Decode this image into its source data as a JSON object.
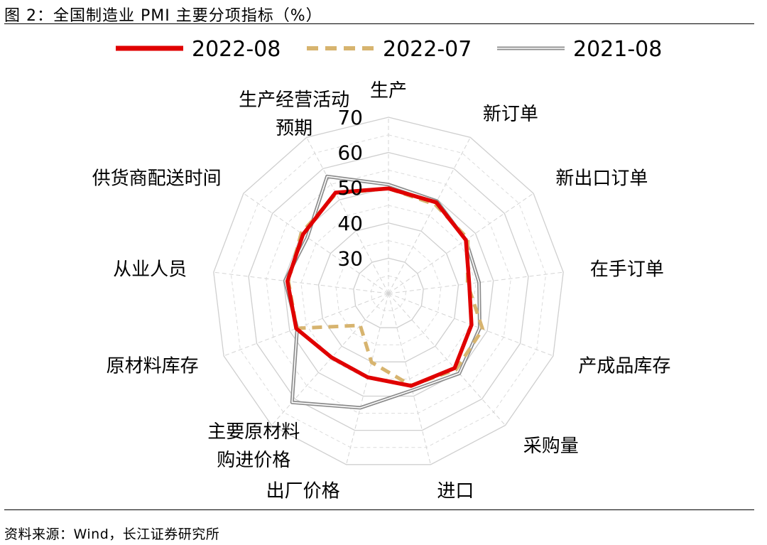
{
  "figure": {
    "title": "图 2：全国制造业 PMI 主要分项指标（%）",
    "source": "资料来源：Wind，长江证券研究所"
  },
  "chart_data": {
    "type": "radar",
    "r_range": [
      20,
      70
    ],
    "r_ticks": [
      30,
      40,
      50,
      60,
      70
    ],
    "grid": true,
    "legend_position": "top",
    "axes": [
      {
        "label": [
          "生产"
        ],
        "anchor": "middle"
      },
      {
        "label": [
          "新订单"
        ],
        "anchor": "start"
      },
      {
        "label": [
          "新出口订单"
        ],
        "anchor": "start"
      },
      {
        "label": [
          "在手订单"
        ],
        "anchor": "start"
      },
      {
        "label": [
          "产成品库存"
        ],
        "anchor": "start"
      },
      {
        "label": [
          "采购量"
        ],
        "anchor": "start"
      },
      {
        "label": [
          "进口"
        ],
        "anchor": "start"
      },
      {
        "label": [
          "出厂价格"
        ],
        "anchor": "end"
      },
      {
        "label": [
          "主要原材料",
          "购进价格"
        ],
        "anchor": "middle"
      },
      {
        "label": [
          "原材料库存"
        ],
        "anchor": "end"
      },
      {
        "label": [
          "从业人员"
        ],
        "anchor": "end"
      },
      {
        "label": [
          "供货商配送时间"
        ],
        "anchor": "end"
      },
      {
        "label": [
          "生产经营活动",
          "预期"
        ],
        "anchor": "middle"
      }
    ],
    "series": [
      {
        "name": "2022-08",
        "style": "solid-thick",
        "color": "#e00000",
        "values": [
          49.8,
          49.2,
          46.7,
          43.1,
          45.2,
          48.3,
          47.0,
          44.5,
          44.3,
          48.0,
          48.9,
          49.5,
          52.3
        ]
      },
      {
        "name": "2022-07",
        "style": "dashed",
        "color": "#d7b46f",
        "values": [
          49.8,
          48.5,
          47.4,
          42.6,
          48.6,
          48.9,
          46.9,
          40.1,
          32.1,
          47.9,
          48.6,
          50.1,
          52.0
        ]
      },
      {
        "name": "2021-08",
        "style": "double-gray",
        "color": "#8c8c8c",
        "values": [
          50.9,
          49.6,
          46.7,
          45.9,
          47.7,
          50.3,
          48.3,
          53.4,
          61.3,
          47.7,
          49.6,
          48.0,
          57.5
        ]
      }
    ]
  }
}
